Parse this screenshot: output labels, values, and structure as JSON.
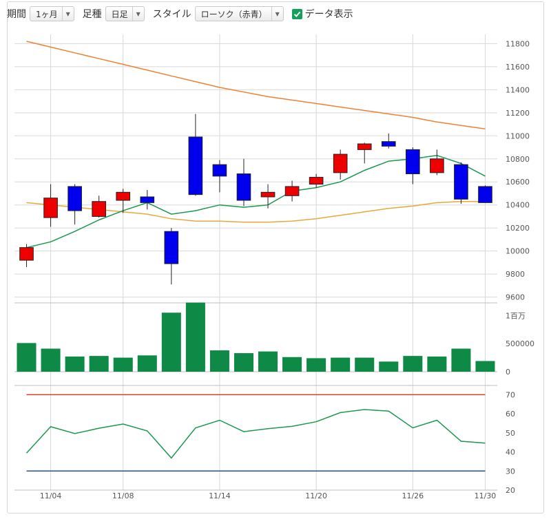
{
  "toolbar": {
    "period_label": "期間",
    "period_value": "1ヶ月",
    "candle_label": "足種",
    "candle_value": "日足",
    "style_label": "スタイル",
    "style_value": "ローソク（赤青）",
    "data_display_label": "データ表示",
    "data_display_checked": true
  },
  "colors": {
    "up": "#ee0000",
    "down": "#0000ee",
    "volume": "#0e8a46",
    "ma_short": "#1a9850",
    "ma_medium": "#e8a838",
    "ma_long": "#f08030",
    "rsi": "#1a9850",
    "rsi_upper": "#d04020",
    "rsi_lower": "#2050a0",
    "grid": "#d8d8d8"
  },
  "chart_data": [
    {
      "type": "candlestick",
      "title": "",
      "x_tick_labels": [
        "11/04",
        "11/08",
        "11/14",
        "11/20",
        "11/26",
        "11/30"
      ],
      "x_tick_index": [
        1,
        4,
        8,
        12,
        16,
        19
      ],
      "y_ticks": [
        9600,
        9800,
        10000,
        10200,
        10400,
        10600,
        10800,
        11000,
        11200,
        11400,
        11600,
        11800
      ],
      "y_range": [
        9550,
        11880
      ],
      "candles": [
        {
          "open": 9920,
          "high": 10060,
          "low": 9860,
          "close": 10030
        },
        {
          "open": 10290,
          "high": 10580,
          "low": 10210,
          "close": 10460
        },
        {
          "open": 10560,
          "high": 10580,
          "low": 10230,
          "close": 10350
        },
        {
          "open": 10300,
          "high": 10480,
          "low": 10290,
          "close": 10430
        },
        {
          "open": 10440,
          "high": 10540,
          "low": 10330,
          "close": 10510
        },
        {
          "open": 10470,
          "high": 10530,
          "low": 10360,
          "close": 10420
        },
        {
          "open": 10170,
          "high": 10200,
          "low": 9710,
          "close": 9890
        },
        {
          "open": 10990,
          "high": 11190,
          "low": 10480,
          "close": 10490
        },
        {
          "open": 10750,
          "high": 10790,
          "low": 10510,
          "close": 10650
        },
        {
          "open": 10670,
          "high": 10800,
          "low": 10390,
          "close": 10440
        },
        {
          "open": 10470,
          "high": 10580,
          "low": 10370,
          "close": 10510
        },
        {
          "open": 10480,
          "high": 10610,
          "low": 10430,
          "close": 10560
        },
        {
          "open": 10580,
          "high": 10670,
          "low": 10550,
          "close": 10640
        },
        {
          "open": 10680,
          "high": 10880,
          "low": 10620,
          "close": 10840
        },
        {
          "open": 10880,
          "high": 10940,
          "low": 10760,
          "close": 10930
        },
        {
          "open": 10950,
          "high": 11020,
          "low": 10890,
          "close": 10910
        },
        {
          "open": 10880,
          "high": 10900,
          "low": 10580,
          "close": 10670
        },
        {
          "open": 10680,
          "high": 10880,
          "low": 10660,
          "close": 10800
        },
        {
          "open": 10750,
          "high": 10770,
          "low": 10410,
          "close": 10450
        },
        {
          "open": 10560,
          "high": 10570,
          "low": 10420,
          "close": 10420
        }
      ],
      "ma_short": [
        10030,
        10080,
        10170,
        10270,
        10350,
        10420,
        10320,
        10350,
        10400,
        10380,
        10400,
        10520,
        10550,
        10600,
        10700,
        10780,
        10800,
        10830,
        10760,
        10650
      ],
      "ma_medium": [
        10420,
        10400,
        10380,
        10360,
        10340,
        10320,
        10280,
        10260,
        10260,
        10250,
        10250,
        10260,
        10280,
        10310,
        10340,
        10370,
        10390,
        10420,
        10430,
        10430
      ],
      "ma_long": [
        11820,
        11770,
        11720,
        11670,
        11620,
        11570,
        11520,
        11470,
        11420,
        11380,
        11340,
        11310,
        11280,
        11250,
        11220,
        11190,
        11160,
        11120,
        11090,
        11060
      ]
    },
    {
      "type": "bar",
      "title": "",
      "y_tick_labels": [
        "1百万",
        "500000",
        "0"
      ],
      "y_tick_values": [
        1000000,
        500000,
        0
      ],
      "y_range": [
        0,
        1200000
      ],
      "values": [
        510000,
        410000,
        270000,
        280000,
        250000,
        290000,
        1050000,
        1230000,
        380000,
        330000,
        360000,
        260000,
        240000,
        250000,
        250000,
        180000,
        280000,
        270000,
        410000,
        190000
      ]
    },
    {
      "type": "line",
      "title": "",
      "y_ticks": [
        20,
        30,
        40,
        50,
        60,
        70
      ],
      "y_range": [
        20,
        73
      ],
      "rsi": [
        39.4,
        53.2,
        49.6,
        52.4,
        54.6,
        51.0,
        36.8,
        52.6,
        56.6,
        50.6,
        52.2,
        53.4,
        55.8,
        60.6,
        62.2,
        61.4,
        52.6,
        56.6,
        45.6,
        44.6
      ],
      "upper": 70,
      "lower": 30
    }
  ]
}
